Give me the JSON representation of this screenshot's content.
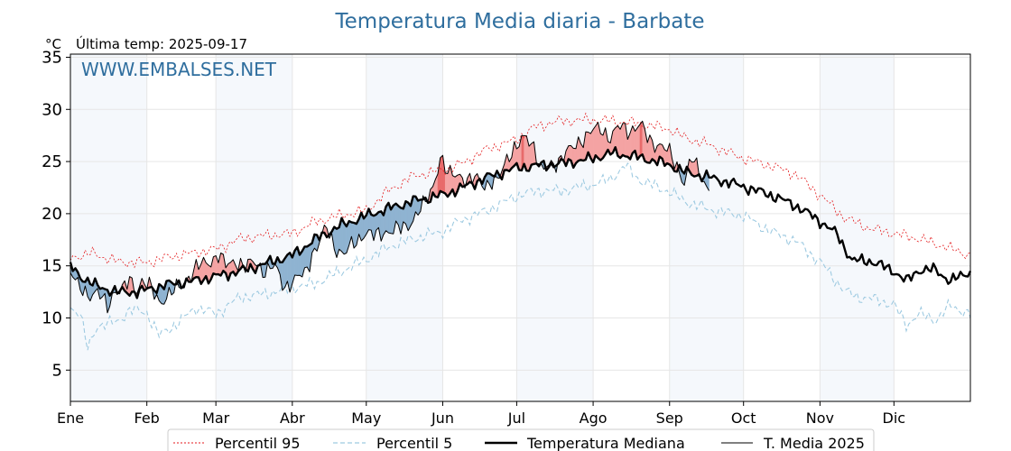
{
  "chart_data": {
    "type": "line",
    "title": "Temperatura Media diaria - Barbate",
    "unit_label": "°C",
    "last_temp_label": "Última temp: 2025-09-17",
    "watermark": "WWW.EMBALSES.NET",
    "xlabel": "",
    "ylabel": "",
    "ylim": [
      2,
      35.3
    ],
    "xlim": [
      1,
      366
    ],
    "yticks": [
      5,
      10,
      15,
      20,
      25,
      30,
      35
    ],
    "x_unit": "day of year",
    "months": [
      {
        "label": "Ene",
        "start": 1
      },
      {
        "label": "Feb",
        "start": 32
      },
      {
        "label": "Mar",
        "start": 60
      },
      {
        "label": "Abr",
        "start": 91
      },
      {
        "label": "May",
        "start": 121
      },
      {
        "label": "Jun",
        "start": 152
      },
      {
        "label": "Jul",
        "start": 182
      },
      {
        "label": "Ago",
        "start": 213
      },
      {
        "label": "Sep",
        "start": 244
      },
      {
        "label": "Oct",
        "start": 274
      },
      {
        "label": "Nov",
        "start": 305
      },
      {
        "label": "Dic",
        "start": 335
      }
    ],
    "grid": true,
    "legend_position": "bottom",
    "colors": {
      "p95": "#e41a1c",
      "p5": "#9ecae1",
      "median": "#000000",
      "current": "#000000",
      "above_fill": "#f4a3a3",
      "above_fill_strong": "#e86b6b",
      "below_fill": "#8fb3d1",
      "band": "#e8f0f9"
    },
    "series": [
      {
        "name": "Percentil 95",
        "style": "dotted-red",
        "points": [
          [
            1,
            15.8
          ],
          [
            10,
            16.2
          ],
          [
            20,
            15.4
          ],
          [
            32,
            15.3
          ],
          [
            40,
            15.8
          ],
          [
            50,
            16.2
          ],
          [
            60,
            16.6
          ],
          [
            70,
            17.6
          ],
          [
            80,
            17.9
          ],
          [
            91,
            18.1
          ],
          [
            100,
            19.2
          ],
          [
            110,
            19.8
          ],
          [
            121,
            20.3
          ],
          [
            130,
            22.2
          ],
          [
            140,
            23.6
          ],
          [
            152,
            24.2
          ],
          [
            160,
            24.8
          ],
          [
            170,
            26.2
          ],
          [
            182,
            27.1
          ],
          [
            190,
            28.4
          ],
          [
            200,
            28.9
          ],
          [
            213,
            29.0
          ],
          [
            220,
            28.9
          ],
          [
            230,
            28.7
          ],
          [
            244,
            28.1
          ],
          [
            250,
            27.3
          ],
          [
            260,
            26.6
          ],
          [
            274,
            25.3
          ],
          [
            285,
            24.6
          ],
          [
            295,
            23.8
          ],
          [
            305,
            21.8
          ],
          [
            315,
            19.6
          ],
          [
            325,
            18.6
          ],
          [
            335,
            18.1
          ],
          [
            345,
            17.6
          ],
          [
            355,
            16.9
          ],
          [
            366,
            16.0
          ]
        ]
      },
      {
        "name": "Percentil 5",
        "style": "dashed-lightblue",
        "points": [
          [
            1,
            11.0
          ],
          [
            5,
            10.5
          ],
          [
            8,
            7.0
          ],
          [
            12,
            9.3
          ],
          [
            20,
            9.6
          ],
          [
            25,
            10.8
          ],
          [
            32,
            10.5
          ],
          [
            37,
            8.3
          ],
          [
            45,
            9.6
          ],
          [
            52,
            11.0
          ],
          [
            60,
            10.4
          ],
          [
            70,
            12.0
          ],
          [
            80,
            12.3
          ],
          [
            91,
            12.9
          ],
          [
            100,
            13.3
          ],
          [
            110,
            14.4
          ],
          [
            121,
            15.6
          ],
          [
            130,
            16.8
          ],
          [
            140,
            17.6
          ],
          [
            152,
            18.3
          ],
          [
            160,
            19.4
          ],
          [
            170,
            20.3
          ],
          [
            182,
            21.7
          ],
          [
            190,
            22.2
          ],
          [
            200,
            22.2
          ],
          [
            213,
            22.8
          ],
          [
            220,
            23.3
          ],
          [
            226,
            24.6
          ],
          [
            232,
            23.2
          ],
          [
            244,
            22.1
          ],
          [
            250,
            21.2
          ],
          [
            260,
            20.4
          ],
          [
            274,
            19.8
          ],
          [
            285,
            18.3
          ],
          [
            295,
            17.4
          ],
          [
            305,
            15.4
          ],
          [
            315,
            12.6
          ],
          [
            320,
            12.0
          ],
          [
            325,
            11.9
          ],
          [
            335,
            11.3
          ],
          [
            340,
            9.3
          ],
          [
            345,
            10.4
          ],
          [
            352,
            9.8
          ],
          [
            358,
            11.2
          ],
          [
            366,
            10.3
          ]
        ]
      },
      {
        "name": "Temperatura Mediana",
        "style": "thick-black",
        "points": [
          [
            1,
            15.0
          ],
          [
            5,
            14.0
          ],
          [
            12,
            13.0
          ],
          [
            20,
            12.5
          ],
          [
            28,
            12.5
          ],
          [
            32,
            12.7
          ],
          [
            40,
            13.2
          ],
          [
            50,
            13.5
          ],
          [
            60,
            14.0
          ],
          [
            70,
            14.5
          ],
          [
            80,
            15.2
          ],
          [
            91,
            16.0
          ],
          [
            100,
            17.5
          ],
          [
            110,
            18.8
          ],
          [
            121,
            19.8
          ],
          [
            130,
            20.5
          ],
          [
            140,
            21.2
          ],
          [
            152,
            21.8
          ],
          [
            160,
            22.5
          ],
          [
            170,
            23.5
          ],
          [
            182,
            24.4
          ],
          [
            190,
            24.6
          ],
          [
            200,
            24.8
          ],
          [
            213,
            25.3
          ],
          [
            220,
            25.8
          ],
          [
            230,
            25.5
          ],
          [
            244,
            24.7
          ],
          [
            250,
            24.0
          ],
          [
            260,
            23.5
          ],
          [
            274,
            22.6
          ],
          [
            285,
            21.8
          ],
          [
            295,
            20.8
          ],
          [
            305,
            19.3
          ],
          [
            312,
            18.0
          ],
          [
            318,
            15.5
          ],
          [
            325,
            15.5
          ],
          [
            335,
            14.5
          ],
          [
            340,
            13.5
          ],
          [
            345,
            14.6
          ],
          [
            352,
            14.6
          ],
          [
            358,
            13.5
          ],
          [
            366,
            14.5
          ]
        ]
      },
      {
        "name": "T. Media 2025",
        "style": "thin-black",
        "points": [
          [
            1,
            14.5
          ],
          [
            4,
            12.9
          ],
          [
            8,
            12.4
          ],
          [
            12,
            12.4
          ],
          [
            16,
            11.0
          ],
          [
            19,
            12.8
          ],
          [
            22,
            12.6
          ],
          [
            25,
            13.5
          ],
          [
            28,
            12.8
          ],
          [
            30,
            13.7
          ],
          [
            33,
            12.9
          ],
          [
            37,
            11.6
          ],
          [
            41,
            12.3
          ],
          [
            45,
            12.8
          ],
          [
            49,
            14.1
          ],
          [
            53,
            14.9
          ],
          [
            57,
            15.4
          ],
          [
            61,
            16.1
          ],
          [
            64,
            14.9
          ],
          [
            68,
            15.6
          ],
          [
            72,
            14.8
          ],
          [
            76,
            15.4
          ],
          [
            80,
            14.5
          ],
          [
            84,
            14.8
          ],
          [
            88,
            13.1
          ],
          [
            92,
            13.5
          ],
          [
            96,
            14.3
          ],
          [
            99,
            16.2
          ],
          [
            102,
            17.1
          ],
          [
            105,
            18.7
          ],
          [
            108,
            17.0
          ],
          [
            112,
            15.9
          ],
          [
            116,
            17.3
          ],
          [
            120,
            18.1
          ],
          [
            124,
            17.8
          ],
          [
            128,
            18.4
          ],
          [
            132,
            18.2
          ],
          [
            136,
            18.8
          ],
          [
            140,
            19.4
          ],
          [
            144,
            20.6
          ],
          [
            148,
            22.8
          ],
          [
            151,
            25.2
          ],
          [
            154,
            23.7
          ],
          [
            158,
            24.1
          ],
          [
            162,
            22.8
          ],
          [
            166,
            23.6
          ],
          [
            170,
            22.7
          ],
          [
            174,
            22.9
          ],
          [
            178,
            25.6
          ],
          [
            182,
            26.2
          ],
          [
            186,
            27.5
          ],
          [
            189,
            26.6
          ],
          [
            192,
            23.9
          ],
          [
            196,
            24.8
          ],
          [
            200,
            25.3
          ],
          [
            204,
            26.1
          ],
          [
            208,
            27.2
          ],
          [
            212,
            27.7
          ],
          [
            216,
            28.3
          ],
          [
            220,
            27.3
          ],
          [
            224,
            28.3
          ],
          [
            228,
            28.1
          ],
          [
            232,
            28.4
          ],
          [
            236,
            27.1
          ],
          [
            240,
            26.6
          ],
          [
            244,
            25.7
          ],
          [
            247,
            24.7
          ],
          [
            250,
            23.0
          ],
          [
            253,
            25.2
          ],
          [
            256,
            24.1
          ],
          [
            260,
            22.3
          ]
        ]
      }
    ],
    "legend": [
      "Percentil 95",
      "Percentil 5",
      "Temperatura Mediana",
      "T. Media 2025"
    ]
  }
}
